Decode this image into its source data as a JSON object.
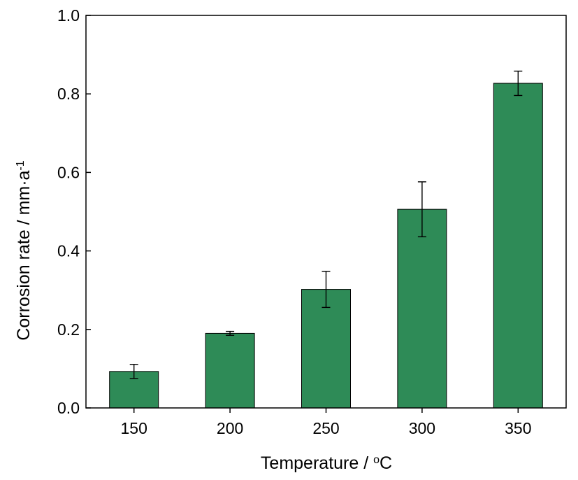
{
  "chart_data": {
    "type": "bar",
    "title": "",
    "xlabel": {
      "main": "Temperature / ",
      "sup": "o",
      "tail": "C"
    },
    "ylabel": {
      "main": "Corrosion rate / mm·a",
      "sup": "-1"
    },
    "categories": [
      "150",
      "200",
      "250",
      "300",
      "350"
    ],
    "values": [
      0.093,
      0.19,
      0.302,
      0.506,
      0.827
    ],
    "error": [
      0.018,
      0.005,
      0.046,
      0.07,
      0.031
    ],
    "ylim": [
      0,
      1.0
    ],
    "yticks": [
      "0.0",
      "0.2",
      "0.4",
      "0.6",
      "0.8",
      "1.0"
    ],
    "grid": false,
    "bar_color": "#2e8b57"
  }
}
